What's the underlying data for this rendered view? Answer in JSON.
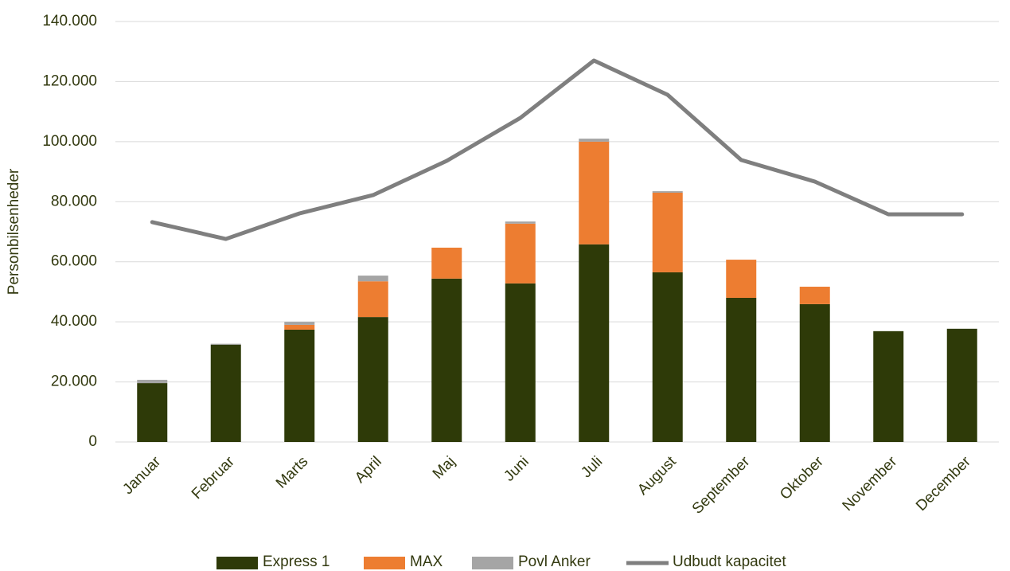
{
  "chart_data": {
    "type": "bar",
    "y_label": "Personbilsenheder",
    "categories": [
      "Januar",
      "Februar",
      "Marts",
      "April",
      "Maj",
      "Juni",
      "Juli",
      "August",
      "September",
      "Oktober",
      "November",
      "December"
    ],
    "series": [
      {
        "name": "Express 1",
        "type": "bar",
        "color": "#2e3a08",
        "values": [
          19600,
          32400,
          37400,
          41600,
          54400,
          52800,
          65800,
          56500,
          48000,
          45900,
          36900,
          37700
        ]
      },
      {
        "name": "MAX",
        "type": "bar",
        "color": "#ed7d31",
        "values": [
          0,
          0,
          1600,
          11900,
          10300,
          19900,
          34200,
          26500,
          12700,
          5800,
          0,
          0
        ]
      },
      {
        "name": "Povl Anker",
        "type": "bar",
        "color": "#a5a5a5",
        "values": [
          1100,
          300,
          1000,
          1900,
          0,
          700,
          1000,
          500,
          0,
          0,
          0,
          0
        ]
      },
      {
        "name": "Udbudt kapacitet",
        "type": "line",
        "color": "#7f7f7f",
        "values": [
          73200,
          67600,
          76100,
          82200,
          93600,
          107900,
          127000,
          115600,
          93900,
          86700,
          75800,
          75800
        ]
      }
    ],
    "ylim": [
      0,
      140000
    ],
    "yticks": [
      0,
      {
        "value": 20000,
        "label": "20.000"
      },
      {
        "value": 40000,
        "label": "40.000"
      },
      {
        "value": 60000,
        "label": "60.000"
      },
      {
        "value": 80000,
        "label": "80.000"
      },
      {
        "value": 100000,
        "label": "100.000"
      },
      {
        "value": 120000,
        "label": "120.000"
      },
      {
        "value": 140000,
        "label": "140.000"
      }
    ],
    "grid": true,
    "legend": "bottom"
  }
}
